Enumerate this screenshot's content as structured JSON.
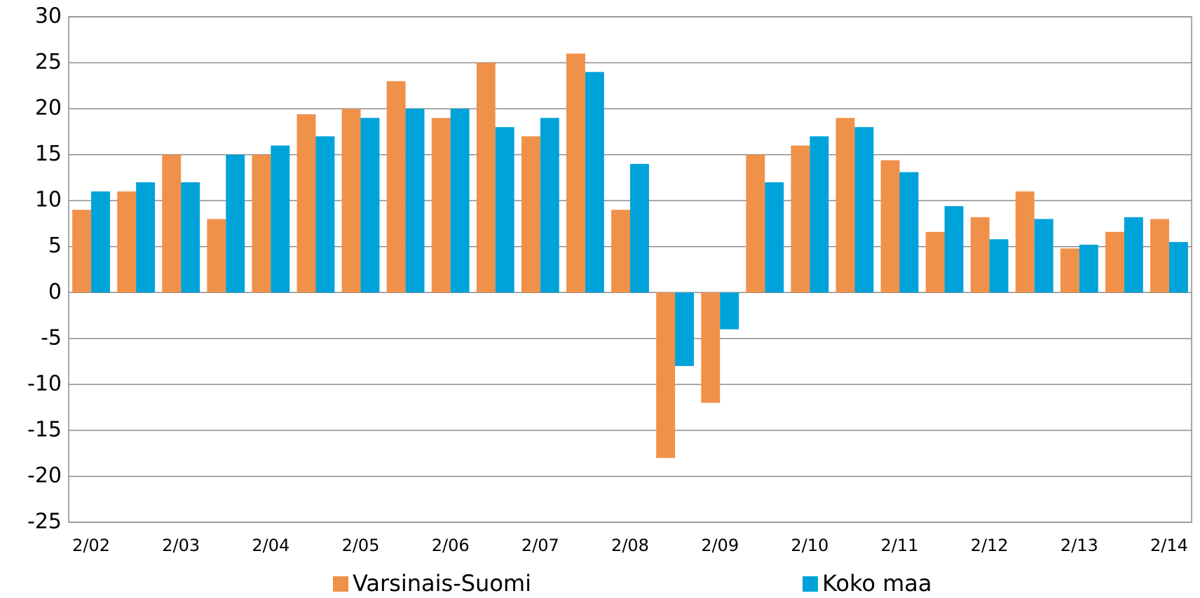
{
  "chart_data": {
    "type": "bar",
    "categories": [
      "2/02",
      null,
      "2/03",
      null,
      "2/04",
      null,
      "2/05",
      null,
      "2/06",
      null,
      "2/07",
      null,
      "2/08",
      null,
      "2/09",
      null,
      "2/10",
      null,
      "2/11",
      null,
      "2/12",
      null,
      "2/13",
      null,
      "2/14"
    ],
    "series": [
      {
        "name": "Varsinais-Suomi",
        "color": "#f0914a",
        "values": [
          9,
          11,
          15,
          8,
          15,
          19.4,
          20,
          23,
          19,
          25,
          17,
          26,
          9,
          -18,
          -12,
          15,
          16,
          19,
          14.4,
          6.6,
          8.2,
          11,
          4.8,
          6.6,
          8
        ]
      },
      {
        "name": "Koko maa",
        "color": "#00a3d9",
        "values": [
          11,
          12,
          12,
          15,
          16,
          17,
          19,
          20,
          20,
          18,
          19,
          24,
          14,
          -8,
          -4,
          12,
          17,
          18,
          13.1,
          9.4,
          5.8,
          8,
          5.2,
          8.2,
          5.5
        ]
      }
    ],
    "ylim": [
      -25,
      30
    ],
    "yticks": [
      -25,
      -20,
      -15,
      -10,
      -5,
      0,
      5,
      10,
      15,
      20,
      25,
      30
    ],
    "grid": true,
    "legend": "bottom"
  }
}
